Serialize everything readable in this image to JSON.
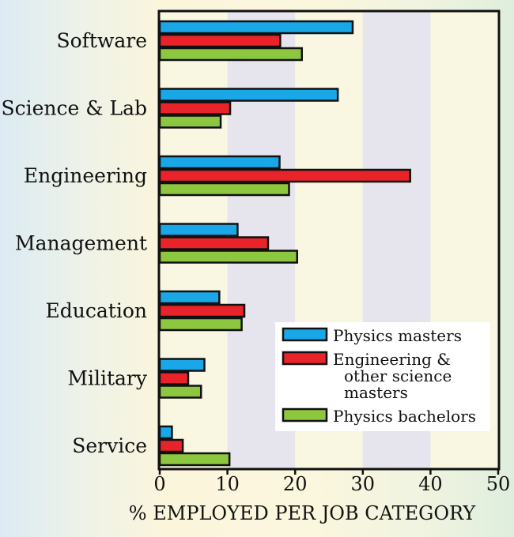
{
  "chart_data": {
    "type": "bar",
    "orientation": "horizontal",
    "categories": [
      "Software",
      "Science & Lab",
      "Engineering",
      "Management",
      "Education",
      "Military",
      "Service"
    ],
    "series": [
      {
        "name": "Physics masters",
        "color": "#1aa7e8",
        "values": [
          28.5,
          26.3,
          17.7,
          11.5,
          8.8,
          6.6,
          1.8
        ]
      },
      {
        "name": "Engineering & other science masters",
        "color": "#e8242a",
        "values": [
          17.8,
          10.4,
          37.0,
          16.0,
          12.5,
          4.2,
          3.4
        ]
      },
      {
        "name": "Physics bachelors",
        "color": "#8dc63f",
        "values": [
          21.0,
          9.0,
          19.1,
          20.3,
          12.1,
          6.1,
          10.3
        ]
      }
    ],
    "legend_lines": [
      [
        "Physics masters"
      ],
      [
        "Engineering &",
        "other science",
        "masters"
      ],
      [
        "Physics bachelors"
      ]
    ],
    "x_ticks": [
      "0",
      "10",
      "20",
      "30",
      "40",
      "50"
    ],
    "xlim": [
      0,
      50
    ],
    "xlabel": "% EMPLOYED PER JOB CATEGORY",
    "ylabel": "",
    "title": "",
    "legend_position": "bottom-right",
    "band_colors": [
      "#f9f6e2",
      "#e6e5ee"
    ]
  }
}
